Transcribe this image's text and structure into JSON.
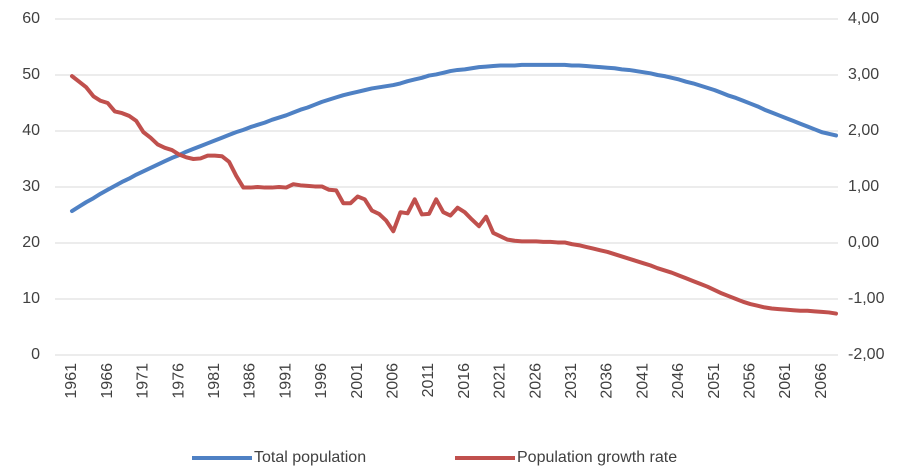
{
  "chart_data": {
    "type": "line",
    "x": [
      1961,
      1962,
      1963,
      1964,
      1965,
      1966,
      1967,
      1968,
      1969,
      1970,
      1971,
      1972,
      1973,
      1974,
      1975,
      1976,
      1977,
      1978,
      1979,
      1980,
      1981,
      1982,
      1983,
      1984,
      1985,
      1986,
      1987,
      1988,
      1989,
      1990,
      1991,
      1992,
      1993,
      1994,
      1995,
      1996,
      1997,
      1998,
      1999,
      2000,
      2001,
      2002,
      2003,
      2004,
      2005,
      2006,
      2007,
      2008,
      2009,
      2010,
      2011,
      2012,
      2013,
      2014,
      2015,
      2016,
      2017,
      2018,
      2019,
      2020,
      2021,
      2022,
      2023,
      2024,
      2025,
      2026,
      2027,
      2028,
      2029,
      2030,
      2031,
      2032,
      2033,
      2034,
      2035,
      2036,
      2037,
      2038,
      2039,
      2040,
      2041,
      2042,
      2043,
      2044,
      2045,
      2046,
      2047,
      2048,
      2049,
      2050,
      2051,
      2052,
      2053,
      2054,
      2055,
      2056,
      2057,
      2058,
      2059,
      2060,
      2061,
      2062,
      2063,
      2064,
      2065,
      2066,
      2067,
      2068
    ],
    "xlim": [
      1961,
      2068
    ],
    "xticks": [
      1961,
      1966,
      1971,
      1976,
      1981,
      1986,
      1991,
      1996,
      2001,
      2006,
      2011,
      2016,
      2021,
      2026,
      2031,
      2036,
      2041,
      2046,
      2051,
      2056,
      2061,
      2066
    ],
    "ylim": [
      0,
      60
    ],
    "yticks": [
      0,
      10,
      20,
      30,
      40,
      50,
      60
    ],
    "y2lim": [
      -2,
      4
    ],
    "y2ticks": [
      {
        "value": -2,
        "label": "-2,00"
      },
      {
        "value": -1,
        "label": "-1,00"
      },
      {
        "value": 0,
        "label": "0,00"
      },
      {
        "value": 1,
        "label": "1,00"
      },
      {
        "value": 2,
        "label": "2,00"
      },
      {
        "value": 3,
        "label": "3,00"
      },
      {
        "value": 4,
        "label": "4,00"
      }
    ],
    "grid": true,
    "legend": "bottom",
    "series": [
      {
        "name": "Total population",
        "color": "#4f81c4",
        "values": [
          25.7,
          26.5,
          27.3,
          28.0,
          28.8,
          29.5,
          30.2,
          30.9,
          31.5,
          32.2,
          32.8,
          33.4,
          34.0,
          34.6,
          35.2,
          35.7,
          36.3,
          36.8,
          37.3,
          37.8,
          38.3,
          38.8,
          39.3,
          39.8,
          40.2,
          40.7,
          41.1,
          41.5,
          42.0,
          42.4,
          42.8,
          43.3,
          43.8,
          44.2,
          44.7,
          45.2,
          45.6,
          46.0,
          46.4,
          46.7,
          47.0,
          47.3,
          47.6,
          47.8,
          48.0,
          48.2,
          48.5,
          48.9,
          49.2,
          49.5,
          49.9,
          50.1,
          50.4,
          50.7,
          50.9,
          51.0,
          51.2,
          51.4,
          51.5,
          51.6,
          51.7,
          51.7,
          51.7,
          51.8,
          51.8,
          51.8,
          51.8,
          51.8,
          51.8,
          51.8,
          51.7,
          51.7,
          51.6,
          51.5,
          51.4,
          51.3,
          51.2,
          51.0,
          50.9,
          50.7,
          50.5,
          50.3,
          50.0,
          49.8,
          49.5,
          49.2,
          48.8,
          48.5,
          48.1,
          47.7,
          47.3,
          46.8,
          46.3,
          45.9,
          45.4,
          44.9,
          44.4,
          43.8,
          43.3,
          42.8,
          42.3,
          41.8,
          41.3,
          40.8,
          40.3,
          39.8,
          39.5,
          39.2
        ]
      },
      {
        "name": "Population growth rate",
        "color": "#c0504d",
        "axis": "y2",
        "values": [
          2.98,
          2.88,
          2.78,
          2.62,
          2.54,
          2.5,
          2.35,
          2.32,
          2.27,
          2.18,
          1.98,
          1.88,
          1.76,
          1.7,
          1.66,
          1.58,
          1.53,
          1.5,
          1.51,
          1.56,
          1.56,
          1.55,
          1.45,
          1.2,
          0.99,
          0.99,
          1,
          0.99,
          0.99,
          1,
          0.99,
          1.05,
          1.03,
          1.02,
          1.01,
          1.01,
          0.95,
          0.94,
          0.71,
          0.71,
          0.83,
          0.78,
          0.58,
          0.52,
          0.4,
          0.21,
          0.55,
          0.53,
          0.78,
          0.51,
          0.52,
          0.78,
          0.55,
          0.49,
          0.63,
          0.55,
          0.42,
          0.3,
          0.47,
          0.18,
          0.12,
          0.06,
          0.04,
          0.03,
          0.03,
          0.03,
          0.02,
          0.02,
          0.01,
          0.01,
          -0.02,
          -0.04,
          -0.07,
          -0.1,
          -0.13,
          -0.16,
          -0.2,
          -0.24,
          -0.28,
          -0.32,
          -0.36,
          -0.4,
          -0.45,
          -0.49,
          -0.53,
          -0.58,
          -0.63,
          -0.68,
          -0.73,
          -0.78,
          -0.84,
          -0.9,
          -0.95,
          -1,
          -1.05,
          -1.09,
          -1.12,
          -1.15,
          -1.17,
          -1.18,
          -1.19,
          -1.2,
          -1.21,
          -1.21,
          -1.22,
          -1.23,
          -1.24,
          -1.26
        ]
      }
    ]
  }
}
